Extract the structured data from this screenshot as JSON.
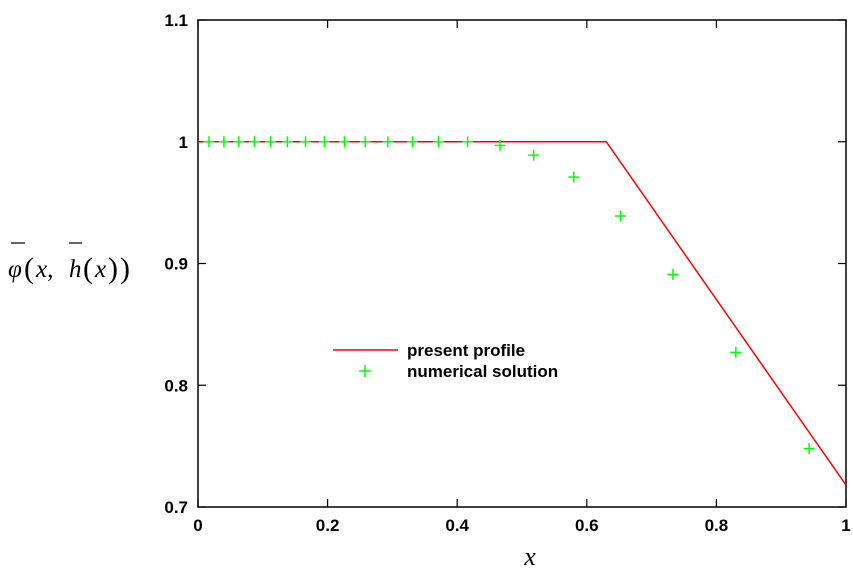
{
  "chart_data": {
    "type": "line",
    "title": "",
    "xlabel": "x",
    "ylabel": {
      "phi": "φ",
      "paren_open": "(",
      "x": "x,",
      "h": "h",
      "inner_open": "(",
      "inner_x": "x",
      "inner_close": ")",
      "paren_close": ")"
    },
    "xlim": [
      0,
      1
    ],
    "ylim": [
      0.7,
      1.1
    ],
    "x_ticks": [
      {
        "value": 0,
        "label": "0"
      },
      {
        "value": 0.2,
        "label": "0.2"
      },
      {
        "value": 0.4,
        "label": "0.4"
      },
      {
        "value": 0.6,
        "label": "0.6"
      },
      {
        "value": 0.8,
        "label": "0.8"
      },
      {
        "value": 1,
        "label": "1"
      }
    ],
    "y_ticks": [
      {
        "value": 0.7,
        "label": "0.7"
      },
      {
        "value": 0.8,
        "label": "0.8"
      },
      {
        "value": 0.9,
        "label": "0.9"
      },
      {
        "value": 1.0,
        "label": "1"
      },
      {
        "value": 1.1,
        "label": "1.1"
      }
    ],
    "grid": false,
    "legend_position": "center",
    "series": [
      {
        "name": "present profile",
        "style": "line",
        "color": "#ff0000",
        "x": [
          0,
          0.63,
          1.0
        ],
        "y": [
          1.0,
          1.0,
          0.718
        ]
      },
      {
        "name": "numerical solution",
        "style": "plus",
        "color": "#00ff00",
        "x": [
          0.017,
          0.04,
          0.063,
          0.087,
          0.112,
          0.138,
          0.166,
          0.195,
          0.226,
          0.258,
          0.293,
          0.331,
          0.371,
          0.416,
          0.466,
          0.518,
          0.58,
          0.652,
          0.733,
          0.83,
          0.943
        ],
        "y": [
          1.0,
          1.0,
          1.0,
          1.0,
          1.0,
          1.0,
          1.0,
          1.0,
          1.0,
          1.0,
          1.0,
          1.0,
          1.0,
          1.0,
          0.997,
          0.989,
          0.971,
          0.939,
          0.891,
          0.827,
          0.748
        ]
      }
    ]
  }
}
